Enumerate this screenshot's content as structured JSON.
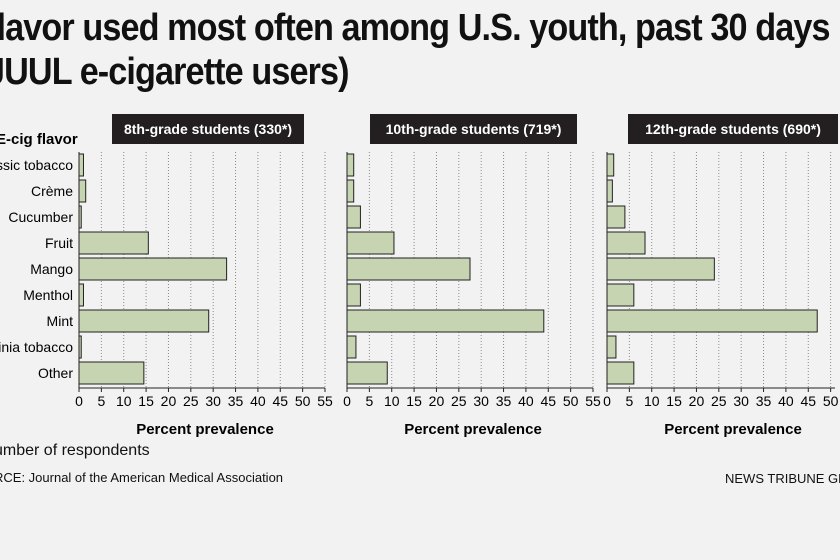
{
  "title_line1": "flavor used most often among U.S. youth, past 30 days",
  "title_line2": "JUUL e-cigarette users)",
  "footnote": "umber of respondents",
  "source": "RCE: Journal of the American Medical Association",
  "credit": "NEWS TRIBUNE GRAP",
  "colors": {
    "bar_fill": "#c6d4b2",
    "bar_stroke": "#222222",
    "grid": "#8a8a8a",
    "header_bg": "#231f20",
    "header_text": "#ffffff"
  },
  "chart_data": {
    "type": "bar",
    "orientation": "horizontal",
    "category_axis_label": "E-cig flavor",
    "categories": [
      "ssic tobacco",
      "Crème",
      "Cucumber",
      "Fruit",
      "Mango",
      "Menthol",
      "Mint",
      "inia tobacco",
      "Other"
    ],
    "xlabel": "Percent prevalence",
    "xlim": [
      0,
      55
    ],
    "xticks": [
      0,
      5,
      10,
      15,
      20,
      25,
      30,
      35,
      40,
      45,
      50,
      55
    ],
    "grid": true,
    "series": [
      {
        "name": "8th-grade students (330*)",
        "values": [
          1.0,
          1.5,
          0.5,
          15.5,
          33.0,
          1.0,
          29.0,
          0.5,
          14.5
        ]
      },
      {
        "name": "10th-grade students (719*)",
        "values": [
          1.5,
          1.5,
          3.0,
          10.5,
          27.5,
          3.0,
          44.0,
          2.0,
          9.0
        ]
      },
      {
        "name": "12th-grade students (690*)",
        "values": [
          1.5,
          1.2,
          4.0,
          8.5,
          24.0,
          6.0,
          47.0,
          2.0,
          6.0
        ]
      }
    ]
  }
}
